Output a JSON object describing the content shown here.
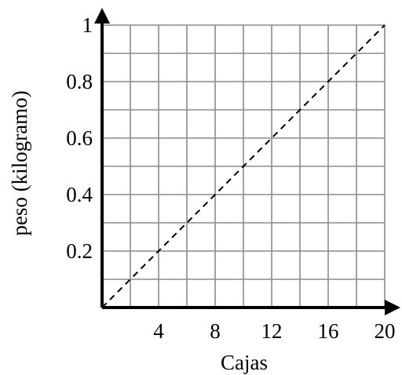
{
  "chart_data": {
    "type": "line",
    "title": "",
    "xlabel": "Cajas",
    "ylabel": "peso (kilogramo)",
    "xlim": [
      0,
      20
    ],
    "ylim": [
      0,
      1
    ],
    "grid": true,
    "x_grid_step": 2,
    "y_grid_step": 0.1,
    "x_ticks": [
      4,
      8,
      12,
      16,
      20
    ],
    "x_tick_labels": [
      "4",
      "8",
      "12",
      "16",
      "20"
    ],
    "y_ticks": [
      0.2,
      0.4,
      0.6,
      0.8,
      1
    ],
    "y_tick_labels": [
      "0.2",
      "0.4",
      "0.6",
      "0.8",
      "1"
    ],
    "series": [
      {
        "style": "dashed",
        "x": [
          0,
          20
        ],
        "y": [
          0,
          1
        ]
      }
    ]
  }
}
